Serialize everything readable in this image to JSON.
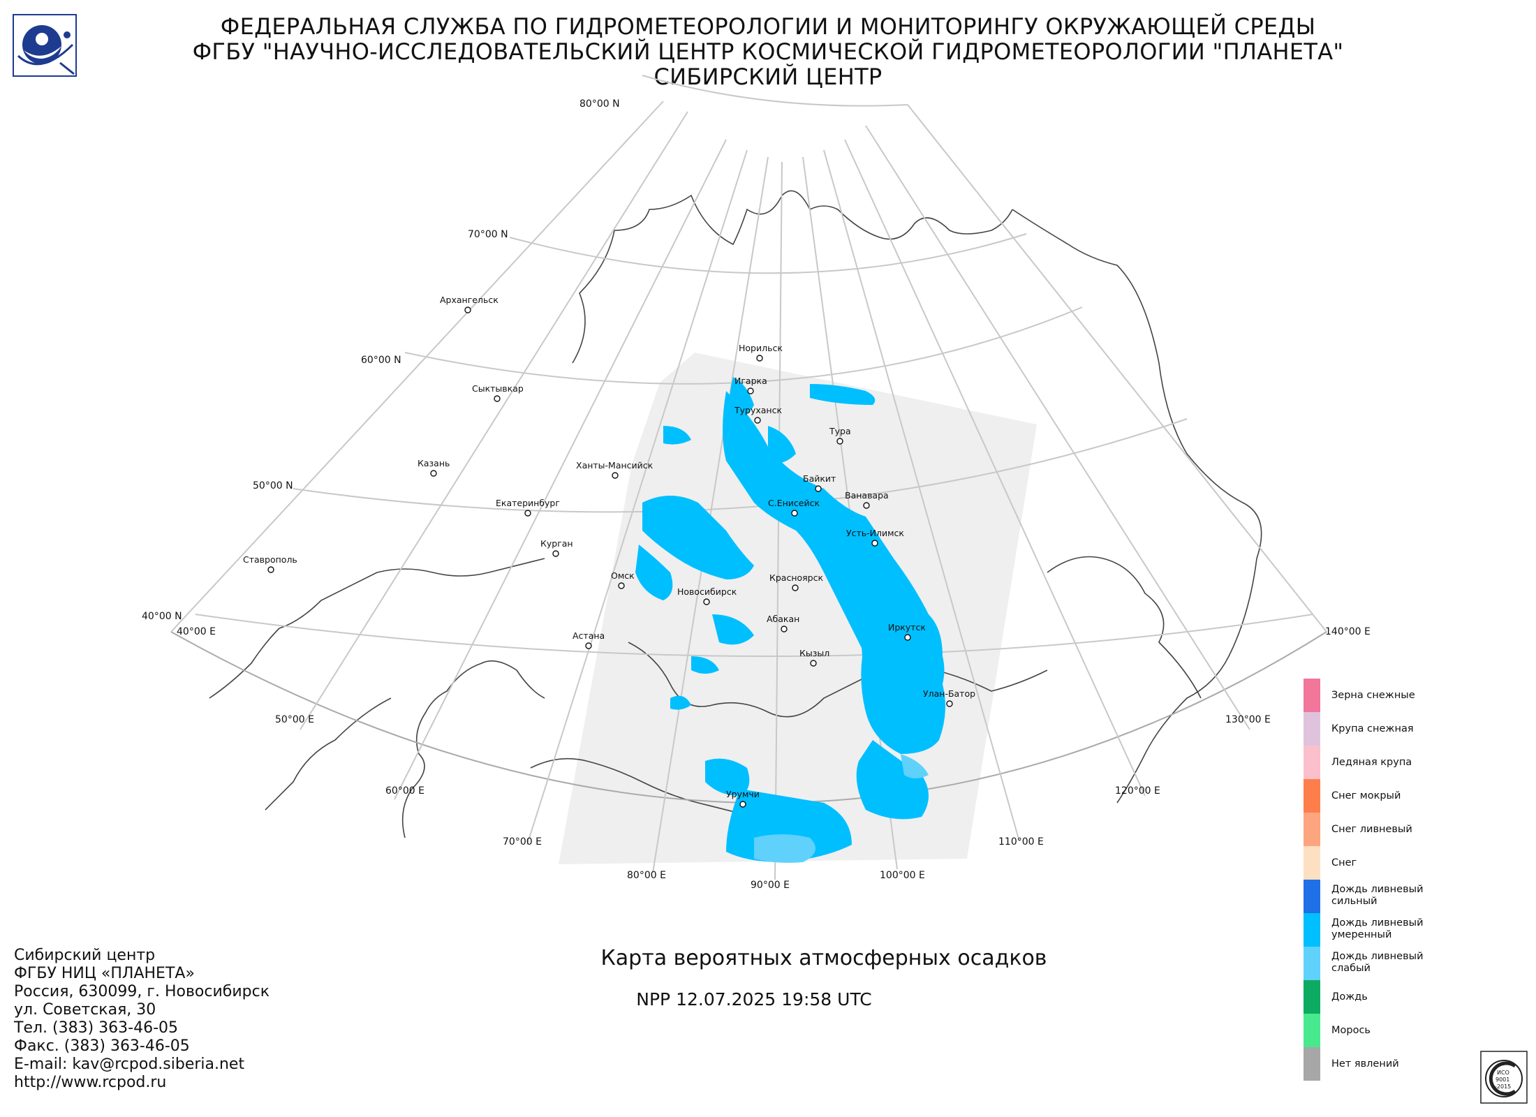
{
  "header": {
    "line1": "ФЕДЕРАЛЬНАЯ СЛУЖБА ПО ГИДРОМЕТЕОРОЛОГИИ И МОНИТОРИНГУ ОКРУЖАЮЩЕЙ СРЕДЫ",
    "line2": "ФГБУ \"НАУЧНО-ИССЛЕДОВАТЕЛЬСКИЙ ЦЕНТР КОСМИЧЕСКОЙ ГИДРОМЕТЕОРОЛОГИИ \"ПЛАНЕТА\"",
    "line3": "СИБИРСКИЙ ЦЕНТР"
  },
  "map": {
    "title": "Карта вероятных атмосферных осадков",
    "subtitle": "NPP 12.07.2025  19:58 UTC",
    "lat_labels": [
      "80°00 N",
      "70°00 N",
      "60°00 N",
      "50°00 N",
      "40°00 N"
    ],
    "lon_labels": [
      "40°00 E",
      "50°00 E",
      "60°00 E",
      "70°00 E",
      "80°00 E",
      "90°00 E",
      "100°00 E",
      "110°00 E",
      "120°00 E",
      "130°00 E",
      "140°00 E"
    ],
    "cities": [
      "Норильск",
      "Игарка",
      "Туруханск",
      "Тура",
      "Архангельск",
      "Сыктывкар",
      "Казань",
      "Ханты-Мансийск",
      "Байкит",
      "Ванавара",
      "С.Енисейск",
      "Екатеринбург",
      "Усть-Илимск",
      "Курган",
      "Ставрополь",
      "Омск",
      "Новосибирск",
      "Красноярск",
      "Абакан",
      "Иркутск",
      "Астана",
      "Кызыл",
      "Улан-Батор",
      "Урумчи"
    ]
  },
  "legend": {
    "items": [
      {
        "label": "Зерна снежные",
        "color": "#f2759a"
      },
      {
        "label": "Крупа снежная",
        "color": "#dfc3dc"
      },
      {
        "label": "Ледяная крупа",
        "color": "#fcc0cc"
      },
      {
        "label": "Снег мокрый",
        "color": "#fe7e4b"
      },
      {
        "label": "Снег ливневый",
        "color": "#fda57e"
      },
      {
        "label": "Снег",
        "color": "#fde0c2"
      },
      {
        "label": "Дождь ливневый сильный",
        "color": "#1f6fe6"
      },
      {
        "label": "Дождь ливневый умеренный",
        "color": "#00bfff"
      },
      {
        "label": "Дождь ливневый слабый",
        "color": "#5fd1fb"
      },
      {
        "label": "Дождь",
        "color": "#0dab62"
      },
      {
        "label": "Морось",
        "color": "#48e98e"
      },
      {
        "label": "Нет явлений",
        "color": "#a7a7a7"
      }
    ]
  },
  "contact": {
    "lines": [
      "Сибирский центр",
      "ФГБУ НИЦ «ПЛАНЕТА»",
      "Россия, 630099, г. Новосибирск",
      "ул. Советская, 30",
      "Тел. (383) 363-46-05",
      "Факс. (383) 363-46-05",
      "E-mail: kav@rcpod.siberia.net",
      "http://www.rcpod.ru"
    ]
  },
  "iso_badge": {
    "lines": [
      "ИСО",
      "9001",
      "-2015"
    ]
  }
}
